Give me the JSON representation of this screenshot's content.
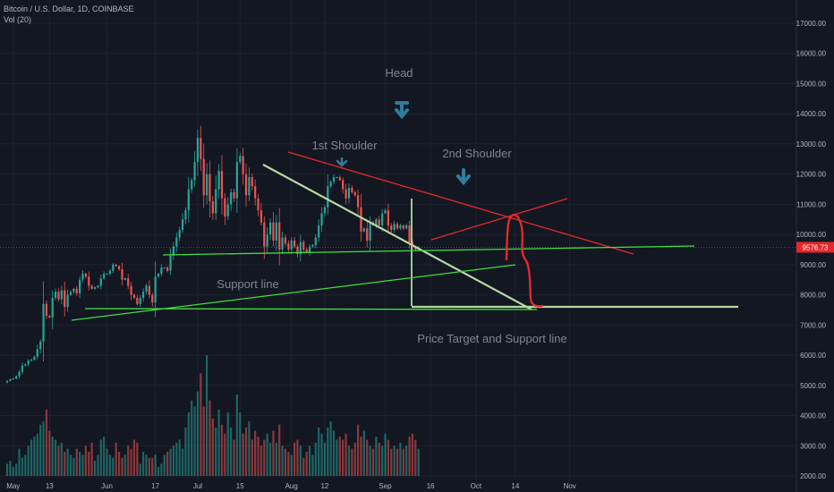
{
  "header": {
    "symbol_line": "Bitcoin / U.S. Dollar, 1D, COINBASE",
    "volume_line": "Vol (20)"
  },
  "colors": {
    "background": "#131722",
    "up": "#26a69a",
    "down": "#ef5350",
    "grid": "#1e2230",
    "axis_text": "#b2b5be",
    "annotation_text": "#7d8594",
    "arrow": "#2e7d9a",
    "trend_red": "#e5282b",
    "support_green": "#3ee03e",
    "pale_green": "#b5d8a0",
    "price_label_bg": "#e5282b"
  },
  "chart_data": {
    "type": "candlestick",
    "title": "Bitcoin / U.S. Dollar, 1D, COINBASE",
    "xlabel": "",
    "ylabel": "",
    "grid": true,
    "x_tick_labels": [
      "May",
      "13",
      "Jun",
      "17",
      "Jul",
      "15",
      "Aug",
      "12",
      "Sep",
      "16",
      "Oct",
      "14",
      "Nov"
    ],
    "y_tick_labels": [
      "17000.00",
      "16000.00",
      "15000.00",
      "14000.00",
      "13000.00",
      "12000.00",
      "11000.00",
      "10000.00",
      "9000.00",
      "8000.00",
      "7000.00",
      "6000.00",
      "5000.00",
      "4000.00",
      "3000.00",
      "2000.00"
    ],
    "ylim": [
      2000,
      18000
    ],
    "last_price_label": "9576.73",
    "last_price": 9576.73,
    "series": [
      {
        "name": "BTCUSD",
        "kind": "ohlc",
        "start_date": "2019-04-29",
        "close": [
          5150,
          5200,
          5230,
          5300,
          5450,
          5650,
          5700,
          5820,
          5850,
          5950,
          6200,
          6450,
          7700,
          7300,
          7250,
          7900,
          8100,
          7850,
          8150,
          7600,
          8000,
          8100,
          8200,
          8050,
          8500,
          8700,
          8600,
          8300,
          8200,
          8250,
          8300,
          8550,
          8700,
          8700,
          8800,
          9000,
          8950,
          8850,
          8500,
          8550,
          8300,
          8000,
          7900,
          7700,
          7900,
          8100,
          8300,
          8000,
          7750,
          8600,
          8700,
          8900,
          8900,
          8800,
          9300,
          9600,
          9900,
          10150,
          10500,
          10800,
          11500,
          11800,
          12400,
          13200,
          12500,
          11300,
          12000,
          11100,
          10700,
          11500,
          12100,
          11200,
          10600,
          11000,
          11400,
          11200,
          12400,
          12600,
          12000,
          11300,
          11900,
          11600,
          11200,
          10800,
          10400,
          9600,
          10000,
          10400,
          9800,
          10400,
          9500,
          9900,
          9700,
          9500,
          9800,
          9600,
          9350,
          9750,
          9500,
          9400,
          9600,
          9650,
          9900,
          10300,
          10700,
          10900,
          11600,
          11750,
          11900,
          11900,
          11800,
          11500,
          11200,
          11550,
          11400,
          11300,
          10900,
          10100,
          10200,
          9800,
          10400,
          10300,
          10500,
          10300,
          10700,
          10800,
          10300,
          10150,
          10350,
          10200,
          10300,
          10200,
          10300,
          9750,
          9600,
          9500,
          9576.73
        ],
        "volume": [
          2400,
          2500,
          2300,
          2400,
          2900,
          2600,
          2700,
          3000,
          3200,
          3300,
          3400,
          3700,
          3800,
          4200,
          3500,
          3300,
          3200,
          3000,
          3100,
          2800,
          2900,
          2700,
          2600,
          2900,
          2800,
          2700,
          3000,
          2800,
          3100,
          2500,
          2700,
          3200,
          3300,
          2900,
          2700,
          2600,
          3100,
          2800,
          2600,
          2700,
          3000,
          2900,
          3200,
          3100,
          2400,
          2800,
          2700,
          2600,
          2600,
          2700,
          2300,
          2400,
          2700,
          2800,
          2900,
          3000,
          3100,
          3200,
          2900,
          3600,
          4100,
          4500,
          4300,
          4800,
          5400,
          4300,
          6000,
          4500,
          3900,
          3600,
          4200,
          3700,
          3400,
          4100,
          3600,
          3200,
          4700,
          4100,
          3400,
          3600,
          3800,
          3200,
          3500,
          3300,
          3000,
          3200,
          3400,
          3100,
          3500,
          3100,
          3700,
          3000,
          2900,
          2800,
          2700,
          3100,
          3200,
          3000,
          2600,
          2800,
          3000,
          2700,
          3100,
          3600,
          3400,
          3100,
          3600,
          3800,
          3500,
          3200,
          3300,
          3200,
          3400,
          3000,
          2900,
          3100,
          3700,
          3300,
          3500,
          3200,
          3000,
          2900,
          3300,
          3100,
          3000,
          3400,
          3200,
          2900,
          3000,
          2900,
          3100,
          2900,
          3000,
          3300,
          3400,
          3200,
          2900
        ]
      }
    ],
    "annotations": [
      {
        "text": "Head",
        "kind": "label"
      },
      {
        "text": "1st Shoulder",
        "kind": "label"
      },
      {
        "text": "2nd Shoulder",
        "kind": "label"
      },
      {
        "text": "Support line",
        "kind": "label"
      },
      {
        "text": "Price Target and Support line",
        "kind": "label"
      }
    ]
  }
}
